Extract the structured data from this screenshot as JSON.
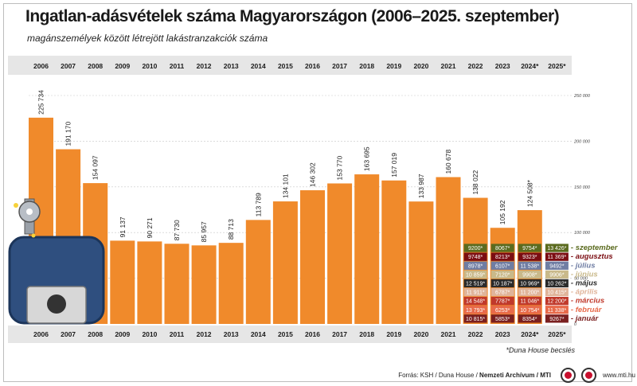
{
  "title": "Ingatlan-adásvételek száma Magyarországon (2006–2025. szeptember)",
  "subtitle": "magánszemélyek között létrejött lakástranzakciók száma",
  "note": "*Duna House becslés",
  "source": {
    "prefix": "Forrás: KSH / Duna House / ",
    "bold": "Nemzeti Archívum / MTI",
    "site": "www.mti.hu"
  },
  "colors": {
    "bar": "#f08a2b",
    "header_band": "#e6e6e6",
    "grid": "#c8c8c8",
    "month_text_dark": "#1a1a1a",
    "month_text_light": "#ffffff"
  },
  "chart_data": {
    "type": "bar",
    "title": "Ingatlan-adásvételek száma Magyarországon (2006–2025. szeptember)",
    "ylim": [
      0,
      250000
    ],
    "yticks": [
      "0",
      "50 000",
      "100 000",
      "150 000",
      "200 000",
      "250 000"
    ],
    "ytick_values": [
      0,
      50000,
      100000,
      150000,
      200000,
      250000
    ],
    "categories": [
      "2006",
      "2007",
      "2008",
      "2009",
      "2010",
      "2011",
      "2012",
      "2013",
      "2014",
      "2015",
      "2016",
      "2017",
      "2018",
      "2019",
      "2020",
      "2021",
      "2022",
      "2023",
      "2024*",
      "2025*"
    ],
    "values": [
      225734,
      191170,
      154097,
      91137,
      90271,
      87730,
      85957,
      88713,
      113789,
      134101,
      146302,
      153770,
      163695,
      157019,
      133987,
      160678,
      138022,
      105192,
      124508,
      null
    ],
    "value_labels": [
      "225 734",
      "191 170",
      "154 097",
      "91 137",
      "90 271",
      "87 730",
      "85 957",
      "88 713",
      "113 789",
      "134 101",
      "146 302",
      "153 770",
      "163 695",
      "157 019",
      "133 987",
      "160 678",
      "138 022",
      "105 192",
      "124 508*",
      ""
    ],
    "months": [
      "január",
      "február",
      "március",
      "április",
      "május",
      "június",
      "július",
      "augusztus",
      "szeptember"
    ],
    "month_colors": [
      "#7a1f1f",
      "#e86a4a",
      "#c0392b",
      "#e0b49a",
      "#2b2b2b",
      "#c9b98a",
      "#6f7da3",
      "#7b0d12",
      "#5b6b1f"
    ],
    "monthly": {
      "2022": {
        "values": [
          10815,
          13793,
          14548,
          11911,
          12519,
          10859,
          8978,
          9748,
          9200
        ],
        "labels": [
          "10 815*",
          "13 793*",
          "14 548*",
          "11 911*",
          "12 519*",
          "10 859*",
          "8978*",
          "9748*",
          "9200*"
        ]
      },
      "2023": {
        "values": [
          5853,
          6253,
          7787,
          6787,
          10187,
          7120,
          6107,
          8213,
          8067
        ],
        "labels": [
          "5853*",
          "6253*",
          "7787*",
          "6787*",
          "10 187*",
          "7120*",
          "6107*",
          "8213*",
          "8067*"
        ]
      },
      "2024*": {
        "values": [
          8354,
          10754,
          11046,
          11200,
          10969,
          9908,
          11538,
          9323,
          9754
        ],
        "labels": [
          "8354*",
          "10 754*",
          "11 046*",
          "11 200*",
          "10 969*",
          "9908*",
          "11 538*",
          "9323*",
          "9754*"
        ]
      },
      "2025*": {
        "values": [
          9267,
          11338,
          12200,
          10415,
          10262,
          9906,
          9492,
          11369,
          13426
        ],
        "labels": [
          "9267*",
          "11 338*",
          "12 200*",
          "10 415*",
          "10 262*",
          "9906*",
          "9492*",
          "11 369*",
          "13 426*"
        ]
      }
    }
  }
}
